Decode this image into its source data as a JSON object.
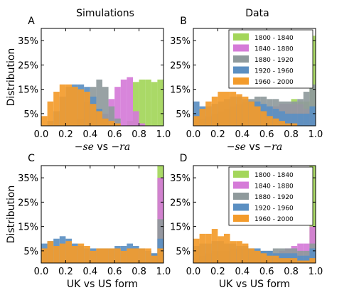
{
  "column_titles": [
    "Simulations",
    "Data"
  ],
  "legend_entries": [
    "1800 - 1840",
    "1840 - 1880",
    "1880 - 1920",
    "1920 - 1960",
    "1960 - 2000"
  ],
  "series_colors": [
    "#a3d65a",
    "#d57bd8",
    "#8f9a9c",
    "#5b8fc2",
    "#f39b2b"
  ],
  "chart_data": [
    {
      "panel": "A",
      "column": "Simulations",
      "type": "bar",
      "bins": 20,
      "x_range": [
        0,
        1
      ],
      "ylim": [
        0,
        0.4
      ],
      "xlabel": "−se vs −ra",
      "ylabel": "Distribution",
      "xticks": [
        "0.0",
        "0.2",
        "0.4",
        "0.6",
        "0.8",
        "1.0"
      ],
      "yticks": [
        "5%",
        "15%",
        "25%",
        "35%"
      ],
      "legend": null,
      "series": [
        {
          "values": [
            0,
            0,
            0,
            0,
            0,
            0,
            0,
            0,
            0,
            0,
            0,
            0,
            0,
            0,
            0.02,
            0.18,
            0.19,
            0.19,
            0.18,
            0.19
          ]
        },
        {
          "values": [
            0,
            0,
            0,
            0,
            0,
            0,
            0,
            0,
            0,
            0,
            0.05,
            0.11,
            0.16,
            0.19,
            0.2,
            0.06,
            0.01,
            0,
            0,
            0
          ]
        },
        {
          "values": [
            0,
            0,
            0,
            0,
            0,
            0,
            0.03,
            0.1,
            0.16,
            0.19,
            0.16,
            0.08,
            0.03,
            0,
            0,
            0,
            0,
            0,
            0,
            0
          ]
        },
        {
          "values": [
            0,
            0.02,
            0.06,
            0.12,
            0.16,
            0.17,
            0.17,
            0.16,
            0.12,
            0.07,
            0.03,
            0,
            0,
            0,
            0,
            0,
            0,
            0,
            0,
            0
          ]
        },
        {
          "values": [
            0.04,
            0.1,
            0.14,
            0.17,
            0.17,
            0.16,
            0.15,
            0.14,
            0.09,
            0.06,
            0.03,
            0.02,
            0.01,
            0,
            0,
            0,
            0,
            0,
            0,
            0
          ]
        }
      ]
    },
    {
      "panel": "B",
      "column": "Data",
      "type": "bar",
      "bins": 20,
      "x_range": [
        0,
        1
      ],
      "ylim": [
        0,
        0.4
      ],
      "xlabel": "−se vs −ra",
      "ylabel": "",
      "xticks": [
        "0.0",
        "0.2",
        "0.4",
        "0.6",
        "0.8",
        "1.0"
      ],
      "yticks": [
        "5%",
        "15%",
        "25%",
        "35%"
      ],
      "legend": "top-right",
      "series": [
        {
          "values": [
            0,
            0,
            0,
            0,
            0,
            0,
            0,
            0,
            0,
            0,
            0,
            0,
            0,
            0,
            0.05,
            0.08,
            0.11,
            0.1,
            0.1,
            0.37
          ]
        },
        {
          "values": [
            0,
            0,
            0,
            0,
            0.01,
            0.02,
            0.03,
            0.04,
            0.05,
            0.06,
            0.07,
            0.07,
            0.08,
            0.08,
            0.09,
            0.09,
            0.09,
            0.09,
            0.07,
            0.04
          ]
        },
        {
          "values": [
            0.02,
            0.03,
            0.04,
            0.05,
            0.06,
            0.07,
            0.08,
            0.09,
            0.1,
            0.11,
            0.12,
            0.12,
            0.11,
            0.11,
            0.1,
            0.1,
            0.1,
            0.11,
            0.14,
            0.17
          ]
        },
        {
          "values": [
            0.1,
            0.08,
            0.08,
            0.09,
            0.1,
            0.11,
            0.12,
            0.12,
            0.11,
            0.1,
            0.1,
            0.09,
            0.08,
            0.07,
            0.06,
            0.05,
            0.05,
            0.05,
            0.05,
            0.08
          ]
        },
        {
          "values": [
            0.04,
            0.07,
            0.1,
            0.12,
            0.14,
            0.14,
            0.14,
            0.13,
            0.12,
            0.1,
            0.08,
            0.06,
            0.04,
            0.03,
            0.02,
            0.01,
            0.01,
            0,
            0,
            0
          ]
        }
      ]
    },
    {
      "panel": "C",
      "column": "Simulations",
      "type": "bar",
      "bins": 20,
      "x_range": [
        0,
        1
      ],
      "ylim": [
        0,
        0.4
      ],
      "xlabel": "UK vs US form",
      "ylabel": "Distribution",
      "xticks": [
        "0.0",
        "0.2",
        "0.4",
        "0.6",
        "0.8",
        "1.0"
      ],
      "yticks": [
        "5%",
        "15%",
        "25%",
        "35%"
      ],
      "legend": null,
      "series": [
        {
          "values": [
            0,
            0,
            0,
            0,
            0,
            0,
            0,
            0,
            0,
            0,
            0,
            0,
            0,
            0,
            0,
            0,
            0,
            0,
            0,
            0.4
          ]
        },
        {
          "values": [
            0,
            0,
            0,
            0,
            0,
            0,
            0,
            0,
            0,
            0,
            0,
            0,
            0,
            0,
            0,
            0,
            0,
            0,
            0,
            0.35
          ]
        },
        {
          "values": [
            0,
            0,
            0,
            0,
            0,
            0,
            0,
            0,
            0,
            0,
            0,
            0,
            0,
            0,
            0,
            0,
            0,
            0,
            0.04,
            0.18
          ]
        },
        {
          "values": [
            0.08,
            0.09,
            0.1,
            0.11,
            0.1,
            0.08,
            0.07,
            0.06,
            0.06,
            0.06,
            0.06,
            0.06,
            0.07,
            0.07,
            0.08,
            0.07,
            0.06,
            0.05,
            0.04,
            0.1
          ]
        },
        {
          "values": [
            0.06,
            0.09,
            0.07,
            0.08,
            0.09,
            0.07,
            0.08,
            0.07,
            0.05,
            0.06,
            0.06,
            0.06,
            0.06,
            0.05,
            0.06,
            0.06,
            0.06,
            0.06,
            0.03,
            0.06
          ]
        }
      ]
    },
    {
      "panel": "D",
      "column": "Data",
      "type": "bar",
      "bins": 20,
      "x_range": [
        0,
        1
      ],
      "ylim": [
        0,
        0.4
      ],
      "xlabel": "UK vs US form",
      "ylabel": "",
      "xticks": [
        "0.0",
        "0.2",
        "0.4",
        "0.6",
        "0.8",
        "1.0"
      ],
      "yticks": [
        "5%",
        "15%",
        "25%",
        "35%"
      ],
      "legend": "top-right",
      "series": [
        {
          "values": [
            0,
            0,
            0,
            0,
            0,
            0,
            0,
            0,
            0,
            0,
            0,
            0,
            0,
            0,
            0,
            0,
            0,
            0,
            0,
            0.4
          ]
        },
        {
          "values": [
            0,
            0,
            0,
            0,
            0,
            0,
            0,
            0,
            0,
            0,
            0,
            0,
            0.02,
            0.04,
            0.05,
            0.06,
            0.07,
            0.08,
            0.08,
            0.15
          ]
        },
        {
          "values": [
            0.02,
            0.03,
            0.04,
            0.05,
            0.05,
            0.05,
            0.06,
            0.06,
            0.06,
            0.06,
            0.05,
            0.05,
            0.05,
            0.06,
            0.06,
            0.06,
            0.06,
            0.05,
            0.05,
            0.08
          ]
        },
        {
          "values": [
            0.07,
            0.08,
            0.08,
            0.09,
            0.09,
            0.08,
            0.08,
            0.07,
            0.07,
            0.06,
            0.06,
            0.05,
            0.05,
            0.04,
            0.04,
            0.04,
            0.04,
            0.03,
            0.03,
            0.06
          ]
        },
        {
          "values": [
            0.1,
            0.12,
            0.12,
            0.14,
            0.11,
            0.12,
            0.09,
            0.09,
            0.08,
            0.06,
            0.05,
            0.04,
            0.03,
            0.03,
            0.02,
            0.02,
            0.02,
            0.01,
            0.01,
            0.02
          ]
        }
      ]
    }
  ]
}
